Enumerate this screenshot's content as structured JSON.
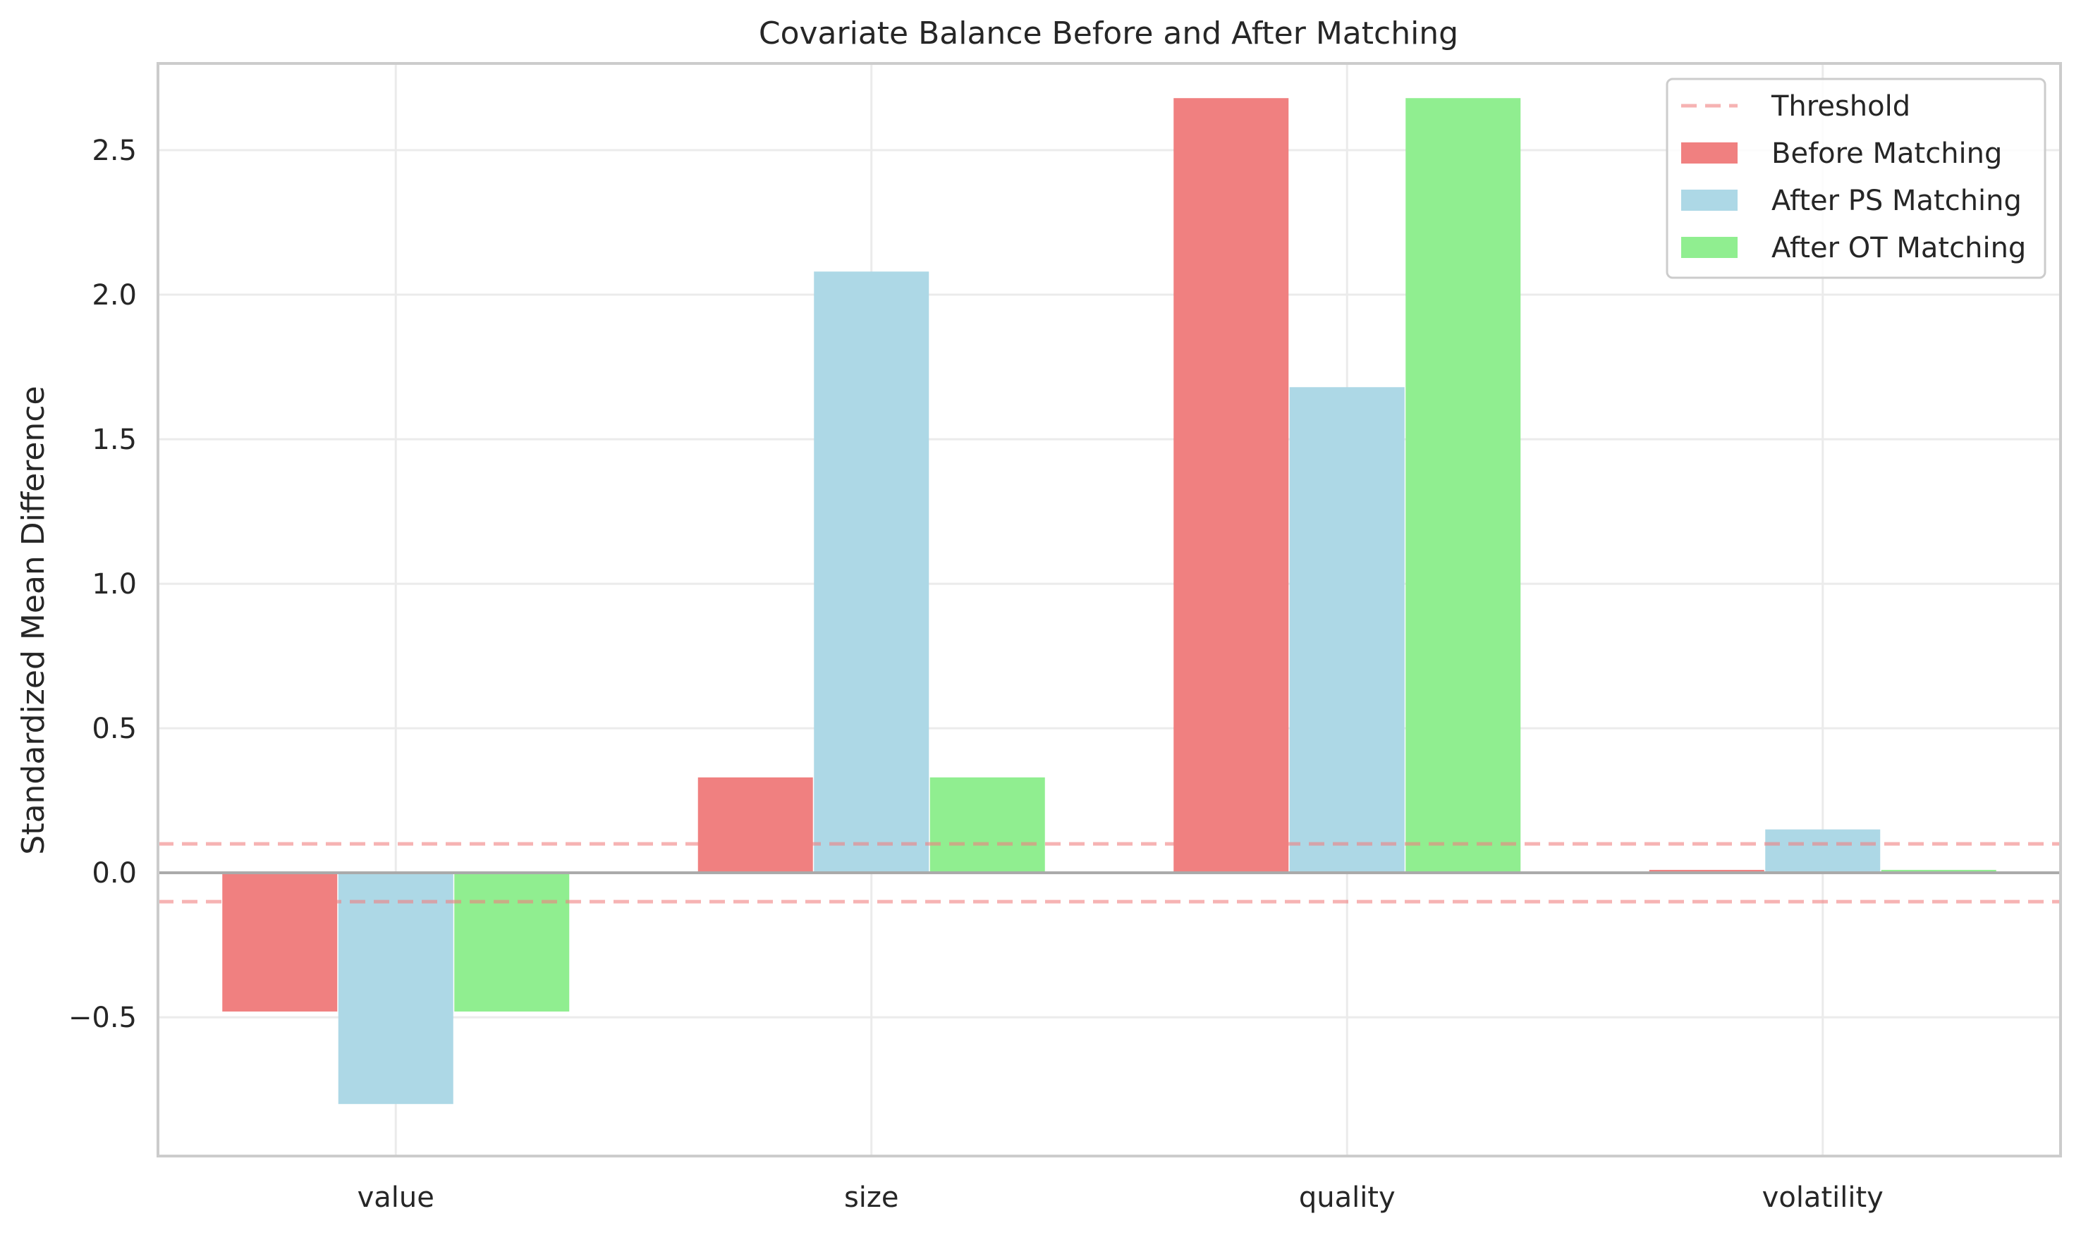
{
  "chart_data": {
    "type": "bar",
    "title": "Covariate Balance Before and After Matching",
    "xlabel": "",
    "ylabel": "Standardized Mean Difference",
    "categories": [
      "value",
      "size",
      "quality",
      "volatility"
    ],
    "series": [
      {
        "name": "Before Matching",
        "color": "#f08080",
        "values": [
          -0.48,
          0.33,
          2.68,
          0.01
        ]
      },
      {
        "name": "After PS Matching",
        "color": "#add8e6",
        "values": [
          -0.8,
          2.08,
          1.68,
          0.15
        ]
      },
      {
        "name": "After OT Matching",
        "color": "#90ee90",
        "values": [
          -0.48,
          0.33,
          2.68,
          0.01
        ]
      }
    ],
    "ylim": [
      -0.98,
      2.8
    ],
    "yticks": [
      -0.5,
      0.0,
      0.5,
      1.0,
      1.5,
      2.0,
      2.5
    ],
    "ytick_labels": [
      "−0.5",
      "0.0",
      "0.5",
      "1.0",
      "1.5",
      "2.0",
      "2.5"
    ],
    "threshold": {
      "name": "Threshold",
      "values": [
        0.1,
        -0.1
      ],
      "color": "#f4a6a6"
    },
    "zero_line_color": "#a9a9a9",
    "grid": true,
    "legend_position": "top-right"
  }
}
